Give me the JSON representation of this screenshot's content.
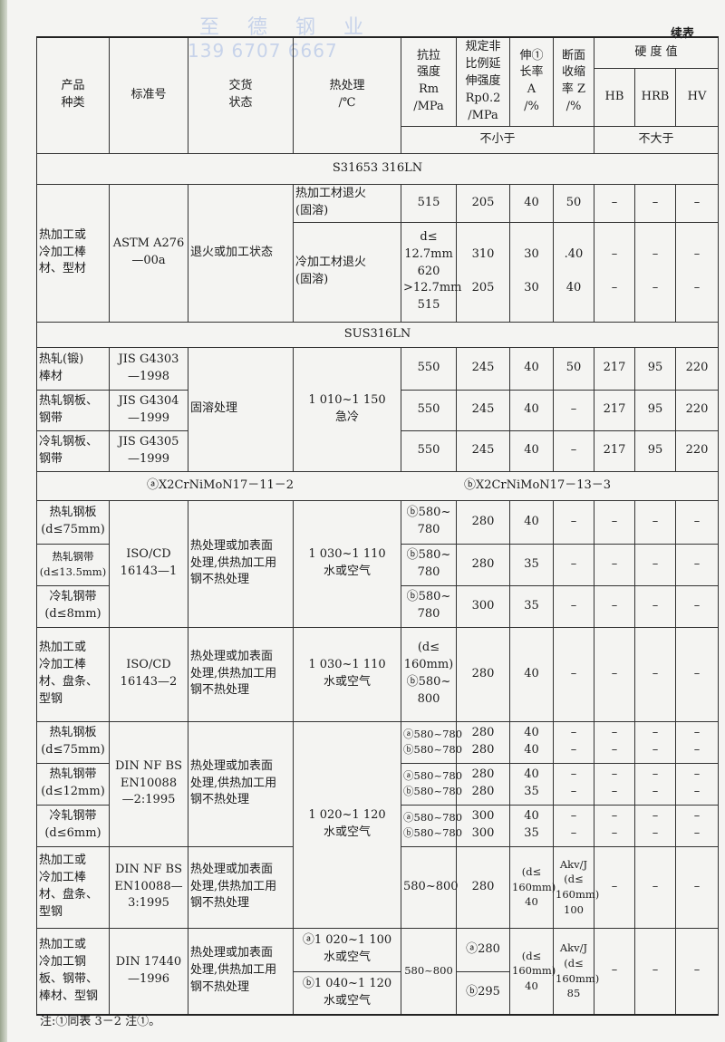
{
  "watermark": {
    "company": "至 德 钢 业",
    "phone": "139 6707 6667"
  },
  "continued_label": "续表",
  "header": {
    "product": "产品\n种类",
    "standard": "标准号",
    "delivery": "交货\n状态",
    "heat": "热处理\n/℃",
    "rm": "抗拉\n强度\nRm\n/MPa",
    "rp": "规定非\n比例延\n伸强度\nRp0.2\n/MPa",
    "a": "伸①\n长率\nA\n/%",
    "z": "断面\n收缩\n率 Z\n/%",
    "hardness": "硬 度 值",
    "hb": "HB",
    "hrb": "HRB",
    "hv": "HV",
    "min": "不小于",
    "max": "不大于"
  },
  "sections": {
    "s1": "S31653    316LN",
    "s2": "SUS316LN",
    "s3a": "ⓐX2CrNiMoN17－11－2",
    "s3b": "ⓑX2CrNiMoN17－13－3"
  },
  "r": {
    "astm1": [
      "热加工或\n冷加工棒\n材、型材",
      "ASTM A276\n—00a",
      "退火或加工状态",
      "热加工材退火\n(固溶)",
      "515",
      "205",
      "40",
      "50",
      "–",
      "–",
      "–"
    ],
    "astm2": [
      "冷加工材退火\n(固溶)",
      "d≤\n12.7mm\n620\n>12.7mm\n515",
      "310\n\n205",
      "30\n\n30",
      ".40\n\n40",
      "–\n\n–",
      "–\n\n–",
      "–\n\n–"
    ],
    "jis1": [
      "热轧(锻)\n棒材",
      "JIS G4303\n—1998",
      "固溶处理",
      "1 010~1 150\n急冷",
      "550",
      "245",
      "40",
      "50",
      "217",
      "95",
      "220"
    ],
    "jis2": [
      "热轧钢板、\n钢带",
      "JIS G4304\n—1999",
      "550",
      "245",
      "40",
      "–",
      "217",
      "95",
      "220"
    ],
    "jis3": [
      "冷轧钢板、\n钢带",
      "JIS G4305\n—1999",
      "550",
      "245",
      "40",
      "–",
      "217",
      "95",
      "220"
    ],
    "iso1": [
      "热轧钢板\n(d≤75mm)",
      "ISO/CD\n16143—1",
      "热处理或加表面\n处理,供热加工用\n钢不热处理",
      "1 030~1 110\n水或空气",
      "ⓑ580~\n780",
      "280",
      "40",
      "–",
      "–",
      "–",
      "–"
    ],
    "iso2": [
      "热轧钢带\n(d≤13.5mm)",
      "ⓑ580~\n780",
      "280",
      "35",
      "–",
      "–",
      "–",
      "–"
    ],
    "iso3": [
      "冷轧钢带\n(d≤8mm)",
      "ⓑ580~\n780",
      "300",
      "35",
      "–",
      "–",
      "–",
      "–"
    ],
    "iso4": [
      "热加工或\n冷加工棒\n材、盘条、\n型钢",
      "ISO/CD\n16143—2",
      "热处理或加表面\n处理,供热加工用\n钢不热处理",
      "1 030~1 110\n水或空气",
      "(d≤\n160mm)\nⓑ580~\n800",
      "280",
      "40",
      "–",
      "–",
      "–",
      "–"
    ],
    "din1": [
      "热轧钢板\n(d≤75mm)",
      "DIN NF BS\nEN10088\n—2:1995",
      "热处理或加表面\n处理,供热加工用\n钢不热处理",
      "1 020~1 120\n水或空气",
      "ⓐ580~780\nⓑ580~780",
      "280\n280",
      "40\n40",
      "–\n–",
      "–\n–",
      "–\n–",
      "–\n–"
    ],
    "din2": [
      "热轧钢带\n(d≤12mm)",
      "ⓐ580~780\nⓑ580~780",
      "280\n280",
      "40\n35",
      "–\n–",
      "–\n–",
      "–\n–",
      "–\n–"
    ],
    "din3": [
      "冷轧钢带\n(d≤6mm)",
      "ⓐ580~780\nⓑ580~780",
      "300\n300",
      "40\n35",
      "–\n–",
      "–\n–",
      "–\n–",
      "–\n–"
    ],
    "din4": [
      "热加工或\n冷加工棒\n材、盘条、\n型钢",
      "DIN NF BS\nEN10088—\n3:1995",
      "热处理或加表面\n处理,供热加工用\n钢不热处理",
      "580~800",
      "280",
      "(d≤\n160mm)\n40",
      "Akv/J\n(d≤\n160mm)\n100",
      "–",
      "–",
      "–"
    ],
    "din5": [
      "热加工或\n冷加工钢\n板、钢带、\n棒材、型钢",
      "DIN 17440\n—1996",
      "热处理或加表面\n处理,供热加工用\n钢不热处理",
      "ⓐ1 020~1 100\n水或空气",
      "580~800",
      "ⓐ280",
      "(d≤\n160mm)\n40",
      "Akv/J\n(d≤\n160mm)\n85",
      "–",
      "–",
      "–"
    ],
    "din6": [
      "ⓑ1 040~1 120\n水或空气",
      "ⓑ295"
    ]
  },
  "footnote": "注:①同表 3－2 注①。"
}
